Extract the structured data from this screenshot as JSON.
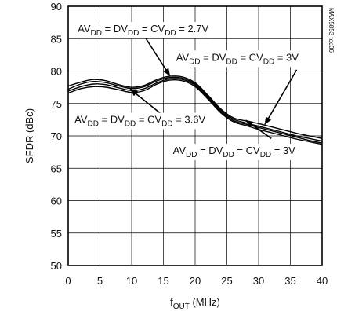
{
  "chart_data": {
    "type": "line",
    "xlabel": "fOUT (MHz)",
    "ylabel": "SFDR (dBc)",
    "xlim": [
      0,
      40
    ],
    "ylim": [
      50,
      90
    ],
    "xticks": [
      0,
      5,
      10,
      15,
      20,
      25,
      30,
      35,
      40
    ],
    "yticks": [
      50,
      55,
      60,
      65,
      70,
      75,
      80,
      85,
      90
    ],
    "grid": true,
    "legend": "none",
    "corner_tag": "MAX5853 toc06",
    "series": [
      {
        "x": [
          0,
          2,
          4,
          6,
          8,
          10,
          12,
          14,
          16,
          18,
          20,
          22,
          24,
          26,
          28,
          30,
          32,
          34,
          36,
          38,
          40
        ],
        "y": [
          77.7,
          78.3,
          78.7,
          78.5,
          77.9,
          77.5,
          77.8,
          78.7,
          79.2,
          79.1,
          78.2,
          76.3,
          74.2,
          72.8,
          72.3,
          71.9,
          71.4,
          70.9,
          70.4,
          70.0,
          69.6
        ]
      },
      {
        "x": [
          0,
          2,
          4,
          6,
          8,
          10,
          12,
          14,
          16,
          18,
          20,
          22,
          24,
          26,
          28,
          30,
          32,
          34,
          36,
          38,
          40
        ],
        "y": [
          77.2,
          78.0,
          78.4,
          78.2,
          77.7,
          77.3,
          77.6,
          78.5,
          79.0,
          78.9,
          78.0,
          76.1,
          74.0,
          72.6,
          72.0,
          71.5,
          71.0,
          70.5,
          70.0,
          69.6,
          69.2
        ]
      },
      {
        "x": [
          0,
          2,
          4,
          6,
          8,
          10,
          12,
          14,
          16,
          18,
          20,
          22,
          24,
          26,
          28,
          30,
          32,
          34,
          36,
          38,
          40
        ],
        "y": [
          76.9,
          77.6,
          78.0,
          77.9,
          77.4,
          77.0,
          77.3,
          78.2,
          78.8,
          78.7,
          77.8,
          75.9,
          73.8,
          72.4,
          71.8,
          71.3,
          70.8,
          70.3,
          69.8,
          69.3,
          68.9
        ]
      },
      {
        "x": [
          0,
          2,
          4,
          6,
          8,
          10,
          12,
          14,
          16,
          18,
          20,
          22,
          24,
          26,
          28,
          30,
          32,
          34,
          36,
          38,
          40
        ],
        "y": [
          76.6,
          77.3,
          77.6,
          77.5,
          77.1,
          76.7,
          77.0,
          78.0,
          78.6,
          78.5,
          77.6,
          75.7,
          73.6,
          72.2,
          71.6,
          71.0,
          70.5,
          70.0,
          69.5,
          69.1,
          68.7
        ]
      }
    ],
    "annotations": [
      {
        "label_main": "AV",
        "label_sub": "DD",
        "label_mid1": " = DV",
        "label_sub2": "DD",
        "label_mid2": " = CV",
        "label_sub3": "DD",
        "label_end": " = 2.7V",
        "text_x": 1.5,
        "text_y": 86,
        "arrow_from": [
          12.0,
          85.4
        ],
        "arrow_to": [
          16.0,
          79.3
        ]
      },
      {
        "label_main": "AV",
        "label_sub": "DD",
        "label_mid1": " = DV",
        "label_sub2": "DD",
        "label_mid2": " = CV",
        "label_sub3": "DD",
        "label_end": " = 3V",
        "text_x": 17.0,
        "text_y": 81.6,
        "arrow_from": [
          36.0,
          80.2
        ],
        "arrow_to": [
          31.0,
          71.8
        ]
      },
      {
        "label_main": "AV",
        "label_sub": "DD",
        "label_mid1": " = DV",
        "label_sub2": "DD",
        "label_mid2": " = CV",
        "label_sub3": "DD",
        "label_end": " = 3.6V",
        "text_x": 1.0,
        "text_y": 72.0,
        "arrow_from": [
          14.5,
          73.5
        ],
        "arrow_to": [
          9.8,
          77.2
        ]
      },
      {
        "label_main": "AV",
        "label_sub": "DD",
        "label_mid1": " = DV",
        "label_sub2": "DD",
        "label_mid2": " = CV",
        "label_sub3": "DD",
        "label_end": " = 3V",
        "text_x": 16.5,
        "text_y": 67.2,
        "arrow_from": [
          32.0,
          69.6
        ],
        "arrow_to": [
          28.0,
          72.4
        ]
      }
    ]
  }
}
